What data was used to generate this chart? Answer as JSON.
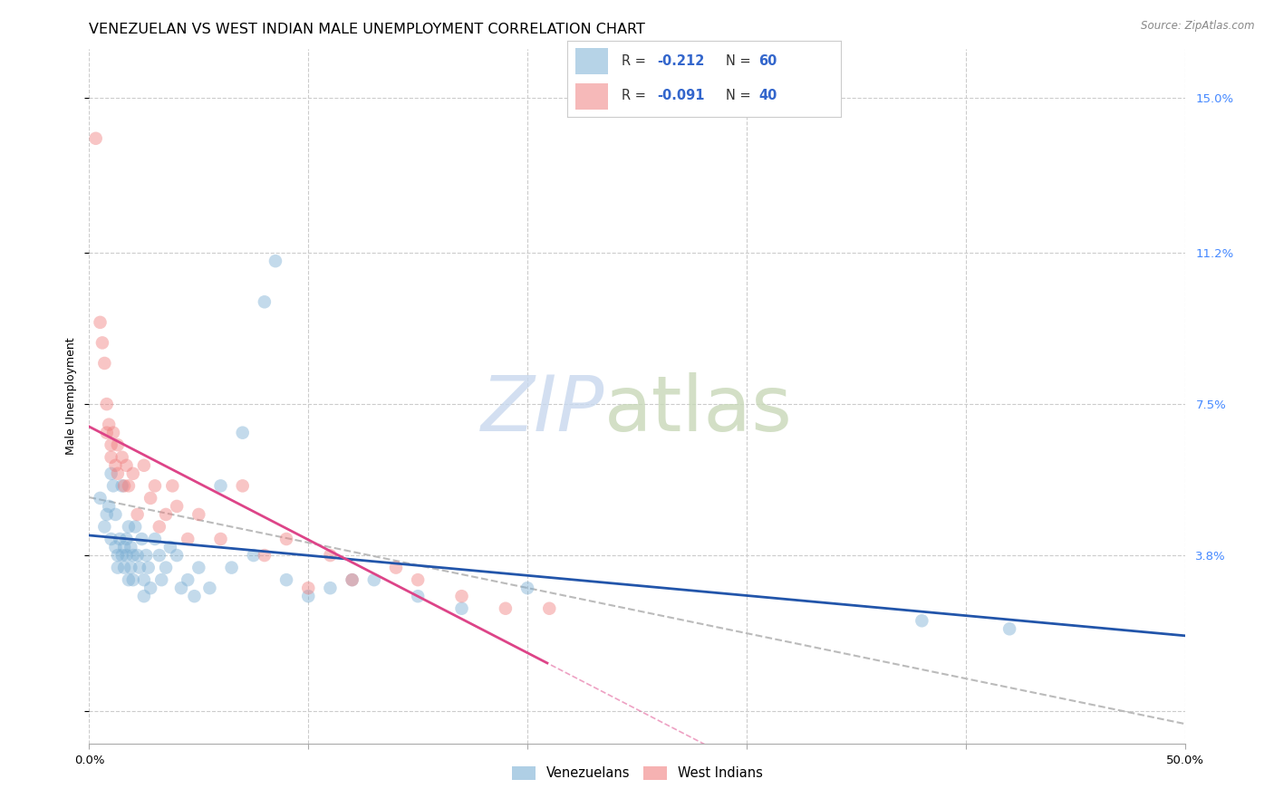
{
  "title": "VENEZUELAN VS WEST INDIAN MALE UNEMPLOYMENT CORRELATION CHART",
  "source": "Source: ZipAtlas.com",
  "ylabel": "Male Unemployment",
  "yticks": [
    0.0,
    0.038,
    0.075,
    0.112,
    0.15
  ],
  "ytick_labels": [
    "",
    "3.8%",
    "7.5%",
    "11.2%",
    "15.0%"
  ],
  "xlim": [
    0.0,
    0.5
  ],
  "ylim": [
    -0.008,
    0.162
  ],
  "legend_label_venezuelans": "Venezuelans",
  "legend_label_west_indians": "West Indians",
  "color_venezuelan": "#7bafd4",
  "color_west_indian": "#f08080",
  "color_reg_venezuelan": "#2255aa",
  "color_reg_west_indian": "#dd4488",
  "watermark_zip": "ZIP",
  "watermark_atlas": "atlas",
  "background_color": "#ffffff",
  "grid_color": "#cccccc",
  "venezuelan_x": [
    0.005,
    0.007,
    0.008,
    0.009,
    0.01,
    0.01,
    0.011,
    0.012,
    0.012,
    0.013,
    0.013,
    0.014,
    0.015,
    0.015,
    0.016,
    0.016,
    0.017,
    0.017,
    0.018,
    0.018,
    0.019,
    0.019,
    0.02,
    0.02,
    0.021,
    0.022,
    0.023,
    0.024,
    0.025,
    0.025,
    0.026,
    0.027,
    0.028,
    0.03,
    0.032,
    0.033,
    0.035,
    0.037,
    0.04,
    0.042,
    0.045,
    0.048,
    0.05,
    0.055,
    0.06,
    0.065,
    0.07,
    0.075,
    0.08,
    0.085,
    0.09,
    0.1,
    0.11,
    0.12,
    0.13,
    0.15,
    0.17,
    0.2,
    0.38,
    0.42
  ],
  "venezuelan_y": [
    0.052,
    0.045,
    0.048,
    0.05,
    0.058,
    0.042,
    0.055,
    0.048,
    0.04,
    0.038,
    0.035,
    0.042,
    0.055,
    0.038,
    0.04,
    0.035,
    0.038,
    0.042,
    0.045,
    0.032,
    0.035,
    0.04,
    0.038,
    0.032,
    0.045,
    0.038,
    0.035,
    0.042,
    0.032,
    0.028,
    0.038,
    0.035,
    0.03,
    0.042,
    0.038,
    0.032,
    0.035,
    0.04,
    0.038,
    0.03,
    0.032,
    0.028,
    0.035,
    0.03,
    0.055,
    0.035,
    0.068,
    0.038,
    0.1,
    0.11,
    0.032,
    0.028,
    0.03,
    0.032,
    0.032,
    0.028,
    0.025,
    0.03,
    0.022,
    0.02
  ],
  "west_indian_x": [
    0.003,
    0.005,
    0.006,
    0.007,
    0.008,
    0.008,
    0.009,
    0.01,
    0.01,
    0.011,
    0.012,
    0.013,
    0.013,
    0.015,
    0.016,
    0.017,
    0.018,
    0.02,
    0.022,
    0.025,
    0.028,
    0.03,
    0.032,
    0.035,
    0.038,
    0.04,
    0.045,
    0.05,
    0.06,
    0.07,
    0.08,
    0.09,
    0.1,
    0.11,
    0.12,
    0.14,
    0.15,
    0.17,
    0.19,
    0.21
  ],
  "west_indian_y": [
    0.14,
    0.095,
    0.09,
    0.085,
    0.075,
    0.068,
    0.07,
    0.065,
    0.062,
    0.068,
    0.06,
    0.065,
    0.058,
    0.062,
    0.055,
    0.06,
    0.055,
    0.058,
    0.048,
    0.06,
    0.052,
    0.055,
    0.045,
    0.048,
    0.055,
    0.05,
    0.042,
    0.048,
    0.042,
    0.055,
    0.038,
    0.042,
    0.03,
    0.038,
    0.032,
    0.035,
    0.032,
    0.028,
    0.025,
    0.025
  ],
  "marker_size": 110,
  "marker_alpha": 0.45,
  "title_fontsize": 11.5,
  "axis_label_fontsize": 9,
  "tick_fontsize": 9.5,
  "source_fontsize": 8.5
}
